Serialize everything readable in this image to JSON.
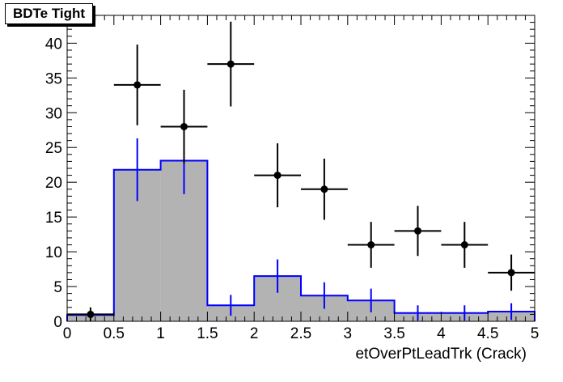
{
  "chart_data": {
    "type": "bar",
    "title": "BDTe Tight",
    "xlabel": "etOverPtLeadTrk (Crack)",
    "ylabel": "",
    "xlim": [
      0,
      5
    ],
    "ylim": [
      0,
      44
    ],
    "x_ticks": [
      "0",
      "0.5",
      "1",
      "1.5",
      "2",
      "2.5",
      "3",
      "3.5",
      "4",
      "4.5",
      "5"
    ],
    "y_ticks": [
      "0",
      "5",
      "10",
      "15",
      "20",
      "25",
      "30",
      "35",
      "40"
    ],
    "bin_edges": [
      0,
      0.5,
      1,
      1.5,
      2,
      2.5,
      3,
      3.5,
      4,
      4.5,
      5
    ],
    "series": [
      {
        "style": "histogram",
        "fill": "#b3b3b3",
        "line": "#0000ff",
        "values": [
          0.9,
          21.8,
          23.1,
          2.3,
          6.5,
          3.7,
          3.0,
          1.2,
          1.2,
          1.4
        ],
        "errors": [
          0.4,
          4.5,
          4.8,
          1.5,
          2.4,
          1.9,
          1.7,
          1.1,
          1.1,
          1.2
        ]
      },
      {
        "style": "points",
        "color": "#000000",
        "x": [
          0.25,
          0.75,
          1.25,
          1.75,
          2.25,
          2.75,
          3.25,
          3.75,
          4.25,
          4.75
        ],
        "values": [
          1,
          34,
          28,
          37,
          21,
          19,
          11,
          13,
          11,
          7
        ],
        "errors": [
          1.0,
          5.8,
          5.3,
          6.1,
          4.6,
          4.4,
          3.3,
          3.6,
          3.3,
          2.6
        ]
      }
    ]
  }
}
